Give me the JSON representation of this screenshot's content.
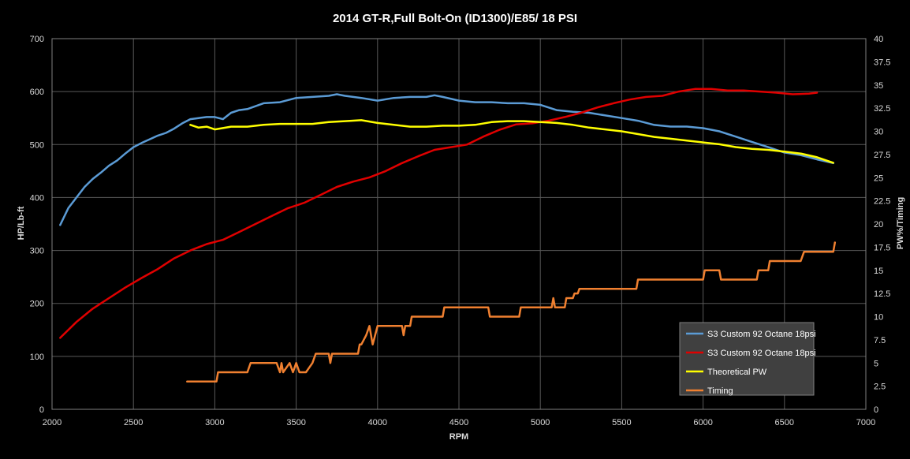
{
  "chart_data": {
    "type": "line",
    "title": "2014 GT-R,Full Bolt-On (ID1300)/E85/ 18 PSI",
    "xlabel": "RPM",
    "ylabel": "HP/Lb-ft",
    "y2label": "PW%/Timing",
    "xlim": [
      2000,
      7000
    ],
    "ylim": [
      0,
      700
    ],
    "y2lim": [
      0,
      40
    ],
    "xticks": [
      "2000",
      "2500",
      "3000",
      "3500",
      "4000",
      "4500",
      "5000",
      "5500",
      "6000",
      "6500",
      "7000"
    ],
    "yticks": [
      "0",
      "100",
      "200",
      "300",
      "400",
      "500",
      "600",
      "700"
    ],
    "y2ticks": [
      "0",
      "2.5",
      "5",
      "7.5",
      "10",
      "12.5",
      "15",
      "17.5",
      "20",
      "22.5",
      "25",
      "27.5",
      "30",
      "32.5",
      "35",
      "37.5",
      "40"
    ],
    "grid": true,
    "legend_position": "bottom-right",
    "series": [
      {
        "name": "S3 Custom 92 Octane 18psi",
        "axis": "left",
        "color": "#5b9bd5",
        "x": [
          2050,
          2100,
          2150,
          2200,
          2250,
          2300,
          2350,
          2400,
          2450,
          2500,
          2550,
          2600,
          2650,
          2700,
          2750,
          2800,
          2850,
          2900,
          2950,
          3000,
          3050,
          3100,
          3150,
          3200,
          3300,
          3400,
          3500,
          3600,
          3700,
          3750,
          3800,
          3900,
          4000,
          4100,
          4200,
          4300,
          4350,
          4400,
          4500,
          4600,
          4700,
          4800,
          4900,
          5000,
          5100,
          5200,
          5300,
          5400,
          5500,
          5600,
          5700,
          5800,
          5900,
          6000,
          6100,
          6200,
          6300,
          6400,
          6500,
          6600,
          6700,
          6800
        ],
        "y": [
          348,
          380,
          400,
          420,
          435,
          447,
          460,
          470,
          483,
          495,
          503,
          510,
          517,
          522,
          530,
          540,
          548,
          550,
          552,
          552,
          548,
          560,
          565,
          567,
          578,
          580,
          588,
          590,
          592,
          595,
          592,
          588,
          583,
          588,
          590,
          590,
          593,
          590,
          583,
          580,
          580,
          578,
          578,
          575,
          565,
          562,
          560,
          555,
          550,
          545,
          537,
          534,
          534,
          531,
          525,
          515,
          505,
          495,
          485,
          480,
          472,
          465
        ]
      },
      {
        "name": "S3 Custom 92 Octane 18psi",
        "axis": "left",
        "color": "#e00000",
        "x": [
          2050,
          2150,
          2250,
          2350,
          2450,
          2550,
          2650,
          2750,
          2850,
          2950,
          3050,
          3150,
          3250,
          3350,
          3450,
          3550,
          3650,
          3750,
          3850,
          3950,
          4050,
          4150,
          4250,
          4350,
          4450,
          4550,
          4650,
          4750,
          4850,
          4950,
          5050,
          5150,
          5250,
          5350,
          5450,
          5550,
          5650,
          5750,
          5850,
          5950,
          6050,
          6150,
          6250,
          6350,
          6450,
          6550,
          6650,
          6700
        ],
        "y": [
          135,
          165,
          190,
          210,
          230,
          248,
          265,
          285,
          300,
          312,
          320,
          335,
          350,
          365,
          380,
          390,
          405,
          420,
          430,
          438,
          450,
          465,
          478,
          490,
          495,
          500,
          515,
          528,
          538,
          540,
          545,
          552,
          560,
          570,
          578,
          585,
          590,
          592,
          600,
          605,
          605,
          602,
          602,
          600,
          598,
          595,
          596,
          598
        ]
      },
      {
        "name": "Theoretical PW",
        "axis": "right",
        "color": "#ffff00",
        "x": [
          2850,
          2900,
          2950,
          3000,
          3100,
          3200,
          3300,
          3400,
          3500,
          3600,
          3700,
          3800,
          3900,
          4000,
          4100,
          4200,
          4300,
          4400,
          4500,
          4600,
          4700,
          4800,
          4900,
          5000,
          5100,
          5200,
          5300,
          5400,
          5500,
          5600,
          5700,
          5800,
          5900,
          6000,
          6100,
          6200,
          6300,
          6400,
          6500,
          6600,
          6700,
          6800
        ],
        "y": [
          30.7,
          30.4,
          30.5,
          30.2,
          30.5,
          30.5,
          30.7,
          30.8,
          30.8,
          30.8,
          31.0,
          31.1,
          31.2,
          30.9,
          30.7,
          30.5,
          30.5,
          30.6,
          30.6,
          30.7,
          31.0,
          31.1,
          31.1,
          31.0,
          30.9,
          30.7,
          30.4,
          30.2,
          30.0,
          29.7,
          29.4,
          29.2,
          29.0,
          28.8,
          28.6,
          28.3,
          28.1,
          28.0,
          27.8,
          27.6,
          27.2,
          26.6
        ]
      },
      {
        "name": "Timing",
        "axis": "right",
        "color": "#f08030",
        "x": [
          2830,
          3000,
          3010,
          3020,
          3200,
          3220,
          3380,
          3400,
          3410,
          3420,
          3460,
          3480,
          3500,
          3520,
          3560,
          3600,
          3620,
          3700,
          3710,
          3720,
          3880,
          3890,
          3900,
          3930,
          3950,
          3970,
          4000,
          4010,
          4150,
          4160,
          4170,
          4200,
          4210,
          4220,
          4400,
          4410,
          4420,
          4680,
          4690,
          4700,
          4870,
          4880,
          5070,
          5080,
          5090,
          5150,
          5160,
          5200,
          5210,
          5230,
          5240,
          5590,
          5600,
          5610,
          6000,
          6010,
          6100,
          6110,
          6120,
          6330,
          6340,
          6350,
          6400,
          6410,
          6600,
          6620,
          6650,
          6800,
          6810
        ],
        "y": [
          3,
          3,
          3,
          4,
          4,
          5,
          5,
          4,
          5,
          4,
          5,
          4,
          5,
          4,
          4,
          5,
          6,
          6,
          5,
          6,
          6,
          7,
          7,
          8,
          9,
          7,
          9,
          9,
          9,
          8,
          9,
          9,
          10,
          10,
          10,
          11,
          11,
          11,
          10,
          10,
          10,
          11,
          11,
          12,
          11,
          11,
          12,
          12,
          12.5,
          12.5,
          13,
          13,
          14,
          14,
          14,
          15,
          15,
          14,
          14,
          14,
          15,
          15,
          15,
          16,
          16,
          17,
          17,
          17,
          18
        ]
      }
    ]
  }
}
